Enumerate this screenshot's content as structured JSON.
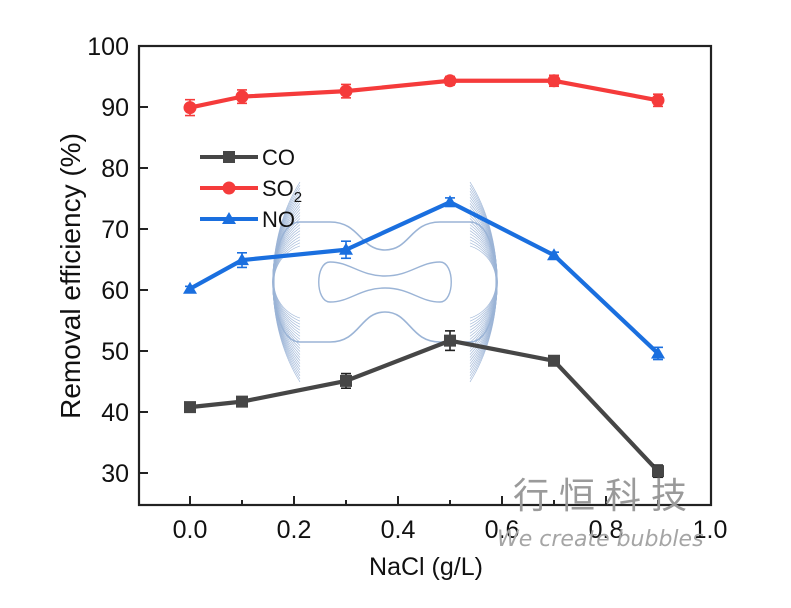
{
  "chart_data": {
    "type": "line",
    "title": "",
    "xlabel": "NaCl (g/L)",
    "ylabel": "Removal efficiency (%)",
    "xlim": [
      -0.09,
      1.0
    ],
    "ylim": [
      25,
      100
    ],
    "xticks": [
      "0.0",
      "0.2",
      "0.4",
      "0.6",
      "0.8",
      "1.0"
    ],
    "xtick_values": [
      0.0,
      0.2,
      0.4,
      0.6,
      0.8,
      1.0
    ],
    "xminor_values": [
      0.1,
      0.3,
      0.5,
      0.7,
      0.9
    ],
    "yticks": [
      "30",
      "40",
      "50",
      "60",
      "70",
      "80",
      "90",
      "100"
    ],
    "ytick_values": [
      30,
      40,
      50,
      60,
      70,
      80,
      90,
      100
    ],
    "grid": false,
    "legend_position": "upper-left",
    "x": [
      0.0,
      0.1,
      0.3,
      0.5,
      0.7,
      0.9
    ],
    "series": [
      {
        "name": "CO",
        "name_sub": "",
        "color": "#464646",
        "marker": "square",
        "values": [
          40.8,
          41.7,
          45.1,
          51.7,
          48.4,
          30.3
        ],
        "errors": [
          0.6,
          0.4,
          1.2,
          1.6,
          0.6,
          1.0
        ]
      },
      {
        "name": "SO",
        "name_sub": "2",
        "color": "#f53b3b",
        "marker": "circle",
        "values": [
          89.9,
          91.7,
          92.6,
          94.3,
          94.3,
          91.1
        ],
        "errors": [
          1.3,
          1.1,
          1.1,
          0.7,
          0.9,
          1.0
        ]
      },
      {
        "name": "NO",
        "name_sub": "",
        "color": "#1a6fdf",
        "marker": "triangle",
        "values": [
          60.2,
          64.9,
          66.6,
          74.4,
          65.7,
          49.6
        ],
        "errors": [
          0.4,
          1.2,
          1.4,
          0.7,
          0.5,
          1.0
        ]
      }
    ]
  },
  "watermark": {
    "chinese": "行恒科技",
    "english": "We create bubbles",
    "color": "#9a9a9a",
    "logo_color": "#9bb4d6"
  }
}
